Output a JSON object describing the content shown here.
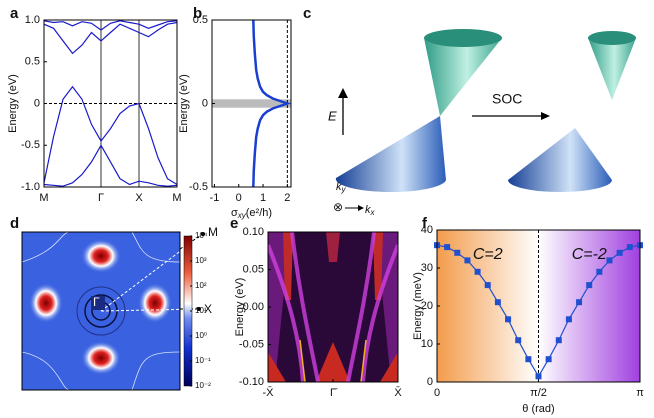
{
  "chart_data": [
    {
      "type": "line",
      "panel": "a",
      "y_label": "Energy (eV)",
      "xlim": [
        0,
        3.5
      ],
      "xticks": [
        {
          "value": 0,
          "label": "M"
        },
        {
          "value": 1.5,
          "label": "Γ"
        },
        {
          "value": 2.5,
          "label": "X"
        },
        {
          "value": 3.5,
          "label": "M"
        }
      ],
      "ylim": [
        -1,
        1
      ],
      "yticks": [
        {
          "value": -1,
          "label": "-1.0"
        },
        -0.5,
        0,
        0.5,
        {
          "value": 1,
          "label": "1.0"
        }
      ],
      "grid": "x",
      "reference_line": {
        "axis": "y",
        "value": 0
      },
      "x": [
        0,
        0.25,
        0.5,
        0.75,
        1,
        1.25,
        1.5,
        1.75,
        2,
        2.25,
        2.5,
        2.75,
        3,
        3.25,
        3.5
      ],
      "series": [
        {
          "color": "#1a1acc",
          "values": [
            -0.95,
            -0.4,
            0.05,
            0.2,
            0.05,
            -0.25,
            -0.45,
            -0.3,
            -0.12,
            -0.03,
            0.0,
            -0.3,
            -0.65,
            -0.9,
            -0.97
          ]
        },
        {
          "color": "#1a1acc",
          "values": [
            -0.97,
            -0.98,
            -0.99,
            -0.95,
            -0.85,
            -0.7,
            -0.5,
            -0.7,
            -0.9,
            -0.97,
            -0.93,
            -0.95,
            -0.98,
            -0.99,
            -0.98
          ]
        },
        {
          "color": "#1a1acc",
          "values": [
            0.95,
            0.9,
            0.75,
            0.6,
            0.7,
            0.85,
            0.75,
            0.85,
            0.95,
            0.9,
            0.85,
            0.8,
            0.88,
            0.95,
            0.97
          ]
        },
        {
          "color": "#1a1acc",
          "values": [
            0.99,
            0.97,
            0.98,
            0.93,
            0.98,
            0.96,
            0.88,
            0.96,
            0.99,
            0.97,
            0.95,
            0.9,
            0.94,
            0.98,
            0.99
          ]
        }
      ]
    },
    {
      "type": "line",
      "panel": "b",
      "y_label": "Energy (eV)",
      "x_label": {
        "symbol": "σ",
        "subscript": "xy",
        "unit": "(e²/h)"
      },
      "xlim": [
        -1.1,
        2.15
      ],
      "xticks": [
        -1,
        0,
        1,
        2
      ],
      "ylim": [
        -0.5,
        0.5
      ],
      "yticks": [
        -0.5,
        0,
        0.5
      ],
      "gap_band": {
        "from": -0.025,
        "to": 0.025,
        "color": "#bbbbbb"
      },
      "reference_line": {
        "axis": "x",
        "value": 2
      },
      "series": [
        {
          "color": "#1a3fd0",
          "x": [
            0.6,
            0.62,
            0.66,
            0.72,
            0.78,
            0.88,
            1.0,
            1.15,
            1.4,
            1.7,
            2,
            1.7,
            1.4,
            1.15,
            1.0,
            0.88,
            0.78,
            0.72,
            0.66,
            0.62,
            0.6
          ],
          "values": [
            0.5,
            0.4,
            0.3,
            0.2,
            0.15,
            0.1,
            0.07,
            0.05,
            0.03,
            0.015,
            0,
            -0.015,
            -0.03,
            -0.05,
            -0.07,
            -0.1,
            -0.15,
            -0.2,
            -0.3,
            -0.4,
            -0.5
          ]
        }
      ]
    },
    {
      "type": "heatmap",
      "panel": "d",
      "point_labels": [
        "M",
        "Γ",
        "X"
      ],
      "colorbar": {
        "scale": "log",
        "lim": [
          0.01,
          10000
        ],
        "ticks": [
          {
            "value": 10000,
            "label": "10⁴"
          },
          {
            "value": 1000,
            "label": "10³"
          },
          {
            "value": 100,
            "label": "10²"
          },
          {
            "value": 10,
            "label": "10¹"
          },
          {
            "value": 1,
            "label": "10⁰"
          },
          {
            "value": 0.1,
            "label": "10⁻¹"
          },
          {
            "value": 0.01,
            "label": "10⁻²"
          }
        ]
      }
    },
    {
      "type": "heatmap",
      "panel": "e",
      "y_label": "Energy (eV)",
      "xlim": [
        -1,
        1
      ],
      "xticks": [
        {
          "value": -1,
          "label": "-X̄"
        },
        {
          "value": 0,
          "label": "Γ̄"
        },
        {
          "value": 1,
          "label": "X̄"
        }
      ],
      "ylim": [
        -0.1,
        0.1
      ],
      "yticks": [
        {
          "value": -0.1,
          "label": "-0.10"
        },
        {
          "value": -0.05,
          "label": "-0.05"
        },
        {
          "value": 0,
          "label": "0.00"
        },
        {
          "value": 0.05,
          "label": "0.05"
        },
        {
          "value": 0.1,
          "label": "0.10"
        }
      ]
    },
    {
      "type": "line",
      "panel": "f",
      "y_label": "Energy (meV)",
      "x_label": "θ (rad)",
      "markers": "square",
      "xlim": [
        0,
        3.142
      ],
      "xticks": [
        0,
        {
          "value": 1.571,
          "label": "π/2"
        },
        {
          "value": 3.142,
          "label": "π"
        }
      ],
      "ylim": [
        0,
        40
      ],
      "yticks": [
        0,
        10,
        20,
        30,
        40
      ],
      "reference_line": {
        "axis": "x",
        "value": 1.571
      },
      "regions": [
        {
          "label": "C=2",
          "color": "#f39c4c",
          "from": 0,
          "to": 1.571
        },
        {
          "label": "C=-2",
          "color": "#a040e0",
          "from": 1.571,
          "to": 3.142
        }
      ],
      "x": [
        0,
        0.157,
        0.314,
        0.471,
        0.628,
        0.785,
        0.942,
        1.1,
        1.257,
        1.414,
        1.571,
        1.728,
        1.885,
        2.042,
        2.199,
        2.356,
        2.513,
        2.67,
        2.827,
        2.985,
        3.142
      ],
      "series": [
        {
          "color": "#2050d0",
          "values": [
            36,
            35.5,
            34,
            32,
            29,
            25.5,
            21,
            16.5,
            11,
            6,
            1.5,
            6,
            11,
            16.5,
            21,
            25.5,
            29,
            32,
            34,
            35.5,
            36
          ]
        }
      ]
    }
  ],
  "diagram": {
    "label": "c",
    "energy_axis": "E",
    "arrow_label": "SOC",
    "ky": {
      "base": "k",
      "sub": "y"
    },
    "kx": {
      "base": "k",
      "sub": "x"
    }
  }
}
